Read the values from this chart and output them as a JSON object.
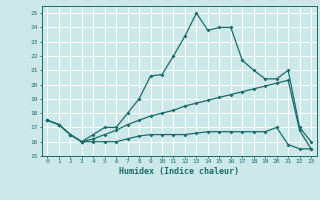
{
  "xlabel": "Humidex (Indice chaleur)",
  "bg_color": "#cde8e8",
  "line_color": "#1a6b6b",
  "grid_color": "#ffffff",
  "xlim": [
    -0.5,
    23.5
  ],
  "ylim": [
    15,
    25.5
  ],
  "yticks": [
    15,
    16,
    17,
    18,
    19,
    20,
    21,
    22,
    23,
    24,
    25
  ],
  "xticks": [
    0,
    1,
    2,
    3,
    4,
    5,
    6,
    7,
    8,
    9,
    10,
    11,
    12,
    13,
    14,
    15,
    16,
    17,
    18,
    19,
    20,
    21,
    22,
    23
  ],
  "curve1_x": [
    0,
    1,
    2,
    3,
    4,
    5,
    6,
    7,
    8,
    9,
    10,
    11,
    12,
    13,
    14,
    15,
    16,
    17,
    18,
    19,
    20,
    21,
    22,
    23
  ],
  "curve1_y": [
    17.5,
    17.2,
    16.5,
    16.0,
    16.5,
    17.0,
    17.0,
    18.0,
    19.0,
    20.6,
    20.7,
    22.0,
    23.4,
    25.0,
    23.8,
    24.0,
    24.0,
    21.7,
    21.0,
    20.4,
    20.4,
    21.0,
    17.0,
    16.0
  ],
  "curve2_x": [
    0,
    1,
    2,
    3,
    4,
    5,
    6,
    7,
    8,
    9,
    10,
    11,
    12,
    13,
    14,
    15,
    16,
    17,
    18,
    19,
    20,
    21,
    22,
    23
  ],
  "curve2_y": [
    17.5,
    17.2,
    16.5,
    16.0,
    16.2,
    16.5,
    16.8,
    17.2,
    17.5,
    17.8,
    18.0,
    18.2,
    18.5,
    18.7,
    18.9,
    19.1,
    19.3,
    19.5,
    19.7,
    19.9,
    20.1,
    20.3,
    16.8,
    15.5
  ],
  "curve3_x": [
    0,
    1,
    2,
    3,
    4,
    5,
    6,
    7,
    8,
    9,
    10,
    11,
    12,
    13,
    14,
    15,
    16,
    17,
    18,
    19,
    20,
    21,
    22,
    23
  ],
  "curve3_y": [
    17.5,
    17.2,
    16.5,
    16.0,
    16.0,
    16.0,
    16.0,
    16.2,
    16.4,
    16.5,
    16.5,
    16.5,
    16.5,
    16.6,
    16.7,
    16.7,
    16.7,
    16.7,
    16.7,
    16.7,
    17.0,
    15.8,
    15.5,
    15.5
  ]
}
